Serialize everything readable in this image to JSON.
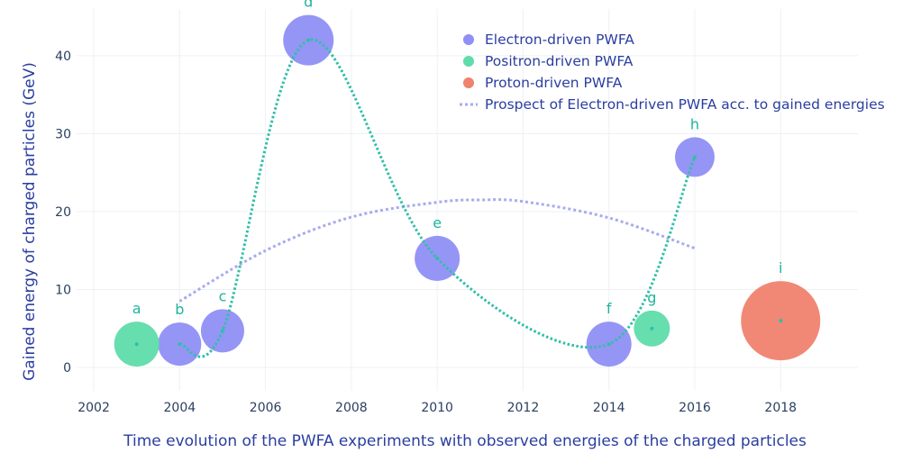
{
  "chart_data": {
    "type": "scatter",
    "xlabel": "Time evolution of the PWFA experiments with observed energies of the charged particles",
    "ylabel": "Gained energy of charged particles (GeV)",
    "xlim": [
      2001.6,
      2019.8
    ],
    "ylim": [
      -3,
      46
    ],
    "x_ticks": [
      2002,
      2004,
      2006,
      2008,
      2010,
      2012,
      2014,
      2016,
      2018
    ],
    "y_ticks": [
      0,
      10,
      20,
      30,
      40
    ],
    "grid": true,
    "legend_position": "top-right",
    "colors": {
      "electron": "#8f8ff5",
      "positron": "#5fdcaa",
      "proton": "#f0826e",
      "curve": "#2fbfa8",
      "label": "#1fb39c",
      "prospect": "#a8abee",
      "grid": "#eef0f4"
    },
    "series": [
      {
        "name": "Electron-driven PWFA",
        "color_key": "electron",
        "points": [
          {
            "label": "b",
            "x": 2004,
            "y": 3,
            "size": 24
          },
          {
            "label": "c",
            "x": 2005,
            "y": 4.7,
            "size": 24
          },
          {
            "label": "d",
            "x": 2007,
            "y": 42,
            "size": 28
          },
          {
            "label": "e",
            "x": 2010,
            "y": 14,
            "size": 25
          },
          {
            "label": "f",
            "x": 2014,
            "y": 3,
            "size": 25
          },
          {
            "label": "h",
            "x": 2016,
            "y": 27,
            "size": 22
          }
        ]
      },
      {
        "name": "Positron-driven PWFA",
        "color_key": "positron",
        "points": [
          {
            "label": "a",
            "x": 2003,
            "y": 3,
            "size": 25
          },
          {
            "label": "g",
            "x": 2015,
            "y": 5,
            "size": 20
          }
        ]
      },
      {
        "name": "Proton-driven PWFA",
        "color_key": "proton",
        "points": [
          {
            "label": "i",
            "x": 2018,
            "y": 6,
            "size": 44
          }
        ]
      }
    ],
    "prospect": {
      "name": "Prospect of Electron-driven PWFA acc. to gained energies",
      "points": [
        [
          2004,
          8.5
        ],
        [
          2006,
          15
        ],
        [
          2008,
          19.3
        ],
        [
          2010,
          21.2
        ],
        [
          2011,
          21.5
        ],
        [
          2012,
          21.3
        ],
        [
          2014,
          19.2
        ],
        [
          2016,
          15.3
        ]
      ]
    },
    "curve_points": [
      [
        2004,
        3
      ],
      [
        2005,
        4.7
      ],
      [
        2007,
        42
      ],
      [
        2010,
        14
      ],
      [
        2014,
        3
      ],
      [
        2016,
        27
      ]
    ]
  }
}
